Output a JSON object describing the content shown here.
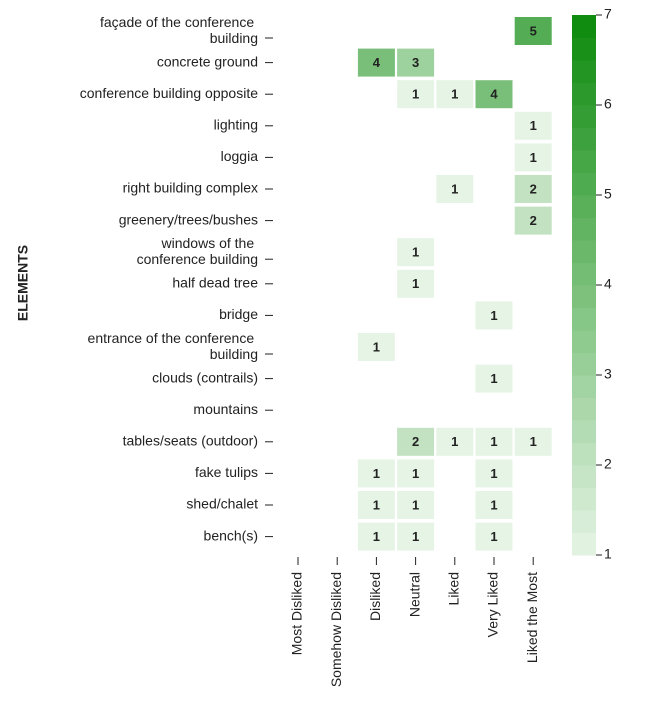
{
  "chart_data": {
    "type": "heatmap",
    "y_title": "ELEMENTS",
    "x_categories": [
      "Most Disliked",
      "Somehow Disliked",
      "Disliked",
      "Neutral",
      "Liked",
      "Very Liked",
      "Liked the Most"
    ],
    "y_categories": [
      "façade of the conference building",
      "concrete ground",
      "conference building opposite",
      "lighting",
      "loggia",
      "right building complex",
      "greenery/trees/bushes",
      "windows of the conference building",
      "half dead tree",
      "bridge",
      "entrance of the conference building",
      "clouds (contrails)",
      "mountains",
      "tables/seats (outdoor)",
      "fake tulips",
      "shed/chalet",
      "bench(s)"
    ],
    "values": [
      [
        null,
        null,
        null,
        null,
        null,
        null,
        5
      ],
      [
        null,
        null,
        4,
        3,
        null,
        null,
        null
      ],
      [
        null,
        null,
        null,
        1,
        1,
        4,
        null
      ],
      [
        null,
        null,
        null,
        null,
        null,
        null,
        1
      ],
      [
        null,
        null,
        null,
        null,
        null,
        null,
        1
      ],
      [
        null,
        null,
        null,
        null,
        1,
        null,
        2
      ],
      [
        null,
        null,
        null,
        null,
        null,
        null,
        2
      ],
      [
        null,
        null,
        null,
        1,
        null,
        null,
        null
      ],
      [
        null,
        null,
        null,
        1,
        null,
        null,
        null
      ],
      [
        null,
        null,
        null,
        null,
        null,
        1,
        null
      ],
      [
        null,
        null,
        1,
        null,
        null,
        null,
        null
      ],
      [
        null,
        null,
        null,
        null,
        null,
        1,
        null
      ],
      [
        null,
        null,
        null,
        null,
        null,
        null,
        null
      ],
      [
        null,
        null,
        null,
        2,
        1,
        1,
        1
      ],
      [
        null,
        null,
        1,
        1,
        null,
        1,
        null
      ],
      [
        null,
        null,
        1,
        1,
        null,
        1,
        null
      ],
      [
        null,
        null,
        1,
        1,
        null,
        1,
        null
      ]
    ],
    "colorscale": [
      "#e6f4e6",
      "#0b8a0b"
    ],
    "zlim": [
      1,
      7
    ],
    "zticks": [
      1,
      2,
      3,
      4,
      5,
      6,
      7
    ]
  }
}
